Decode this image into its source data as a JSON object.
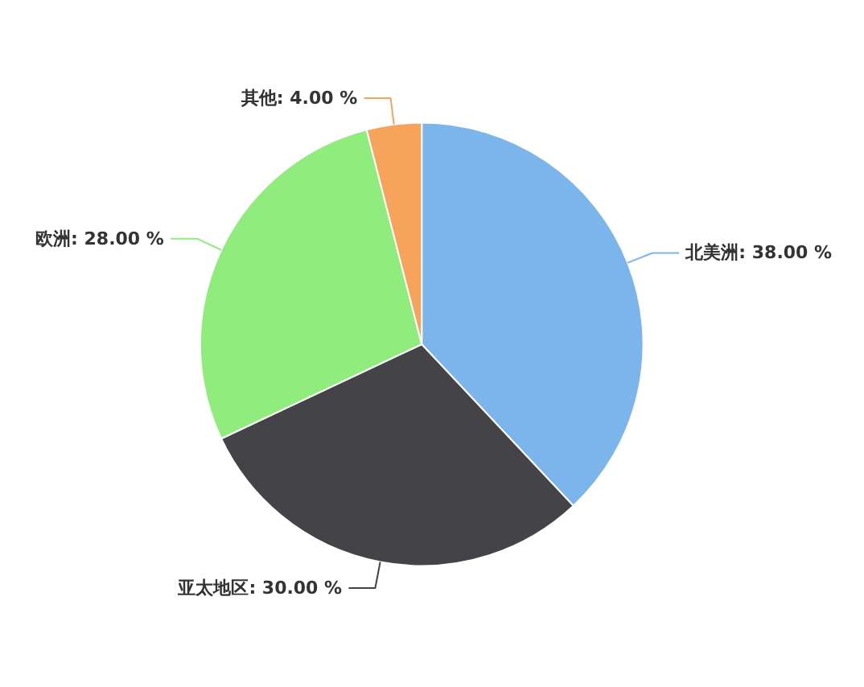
{
  "chart_data": {
    "type": "pie",
    "categories": [
      "北美洲",
      "亚太地区",
      "欧洲",
      "其他"
    ],
    "values": [
      38,
      30,
      28,
      4
    ],
    "value_labels": [
      "38.00 %",
      "30.00 %",
      "28.00 %",
      "4.00 %"
    ],
    "colors": [
      "#7cb5ec",
      "#434348",
      "#90ed7d",
      "#f7a35c"
    ]
  }
}
